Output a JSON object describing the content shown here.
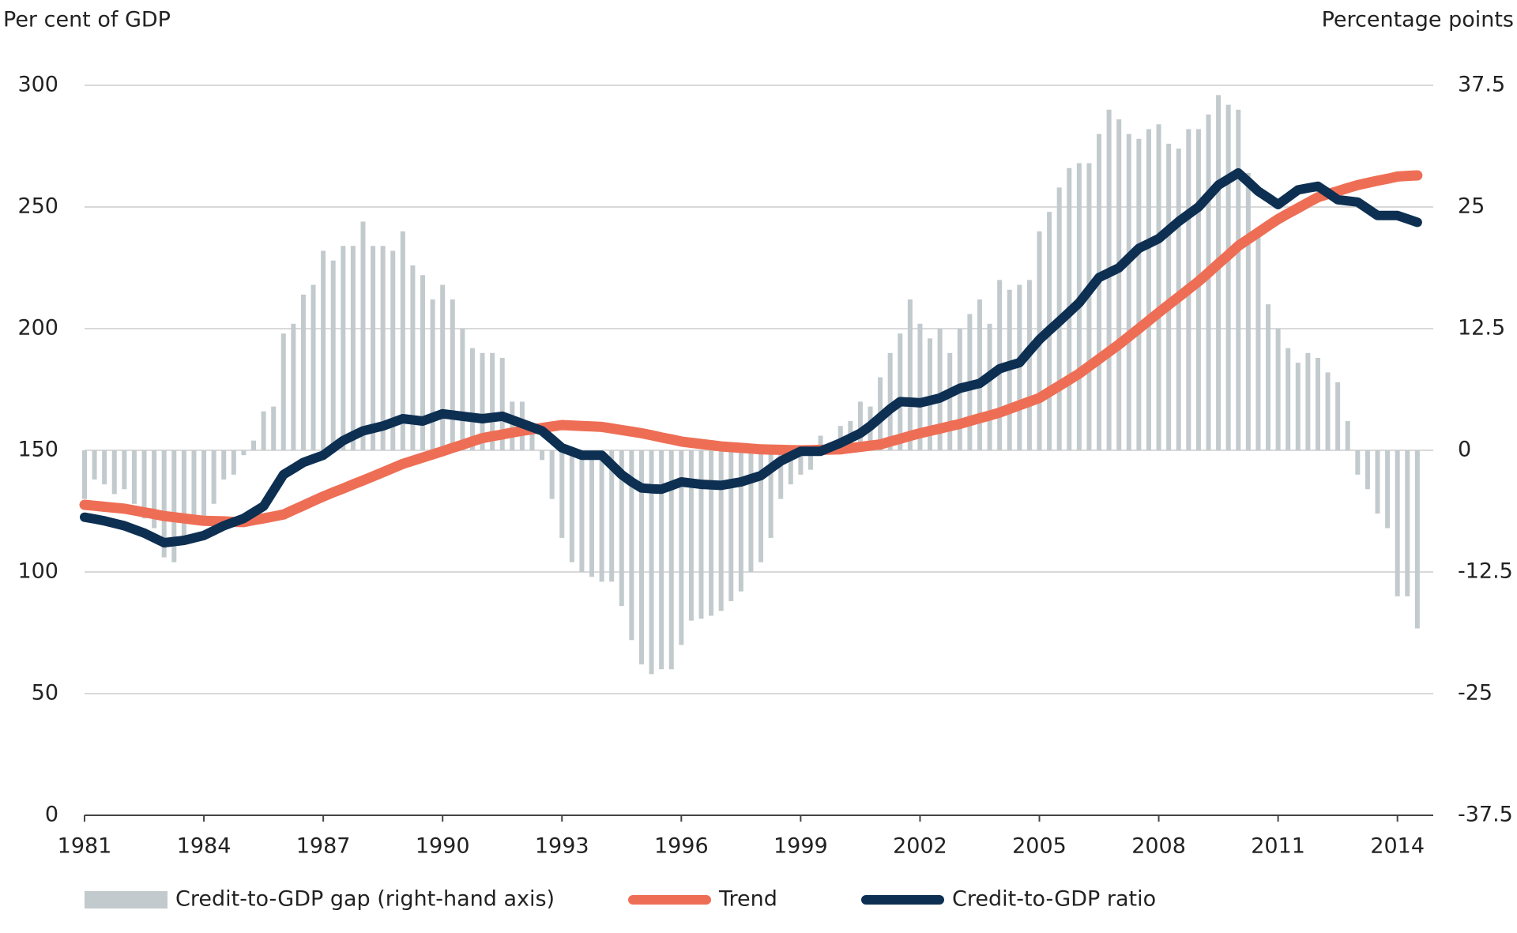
{
  "chart_data": {
    "type": "bar",
    "y_label": "Per cent of GDP",
    "y2_label": "Percentage points",
    "x": [
      1981,
      1981.25,
      1981.5,
      1981.75,
      1982,
      1982.25,
      1982.5,
      1982.75,
      1983,
      1983.25,
      1983.5,
      1983.75,
      1984,
      1984.25,
      1984.5,
      1984.75,
      1985,
      1985.25,
      1985.5,
      1985.75,
      1986,
      1986.25,
      1986.5,
      1986.75,
      1987,
      1987.25,
      1987.5,
      1987.75,
      1988,
      1988.25,
      1988.5,
      1988.75,
      1989,
      1989.25,
      1989.5,
      1989.75,
      1990,
      1990.25,
      1990.5,
      1990.75,
      1991,
      1991.25,
      1991.5,
      1991.75,
      1992,
      1992.25,
      1992.5,
      1992.75,
      1993,
      1993.25,
      1993.5,
      1993.75,
      1994,
      1994.25,
      1994.5,
      1994.75,
      1995,
      1995.25,
      1995.5,
      1995.75,
      1996,
      1996.25,
      1996.5,
      1996.75,
      1997,
      1997.25,
      1997.5,
      1997.75,
      1998,
      1998.25,
      1998.5,
      1998.75,
      1999,
      1999.25,
      1999.5,
      1999.75,
      2000,
      2000.25,
      2000.5,
      2000.75,
      2001,
      2001.25,
      2001.5,
      2001.75,
      2002,
      2002.25,
      2002.5,
      2002.75,
      2003,
      2003.25,
      2003.5,
      2003.75,
      2004,
      2004.25,
      2004.5,
      2004.75,
      2005,
      2005.25,
      2005.5,
      2005.75,
      2006,
      2006.25,
      2006.5,
      2006.75,
      2007,
      2007.25,
      2007.5,
      2007.75,
      2008,
      2008.25,
      2008.5,
      2008.75,
      2009,
      2009.25,
      2009.5,
      2009.75,
      2010,
      2010.25,
      2010.5,
      2010.75,
      2011,
      2011.25,
      2011.5,
      2011.75,
      2012,
      2012.25,
      2012.5,
      2012.75,
      2013,
      2013.25,
      2013.5,
      2013.75,
      2014,
      2014.25,
      2014.5
    ],
    "series": [
      {
        "name": "Credit-to-GDP gap (right-hand axis)",
        "type": "bar",
        "axis": "y2",
        "color": "#c2cacd",
        "values": [
          -5,
          -3,
          -3.5,
          -4.5,
          -4,
          -5.5,
          -7,
          -8,
          -11,
          -11.5,
          -9,
          -7,
          -7,
          -5.5,
          -3,
          -2.5,
          -0.5,
          1,
          4,
          4.5,
          12,
          13,
          16,
          17,
          20.5,
          19.5,
          21,
          21,
          23.5,
          21,
          21,
          20.5,
          22.5,
          19,
          18,
          15.5,
          17,
          15.5,
          12.5,
          10.5,
          10,
          10,
          9.5,
          5,
          5,
          2.5,
          -1,
          -5,
          -9,
          -11.5,
          -12.5,
          -13,
          -13.5,
          -13.5,
          -16,
          -19.5,
          -22,
          -23,
          -22.5,
          -22.5,
          -20,
          -17.5,
          -17.3,
          -17,
          -16.5,
          -15.5,
          -14.5,
          -12.5,
          -11.5,
          -9,
          -5,
          -3.5,
          -2.5,
          -2,
          1.5,
          0,
          2.5,
          3,
          5,
          4.5,
          7.5,
          10,
          12,
          15.5,
          13,
          11.5,
          12.5,
          10,
          12.5,
          14,
          15.5,
          13,
          17.5,
          16.5,
          17,
          17.5,
          22.5,
          24.5,
          27,
          29,
          29.5,
          29.5,
          32.5,
          35,
          34,
          32.5,
          32,
          33,
          33.5,
          31.5,
          31,
          33,
          33,
          34.5,
          36.5,
          35.5,
          35,
          28.5,
          22,
          15,
          12.5,
          10.5,
          9,
          10,
          9.5,
          8,
          7,
          3,
          -2.5,
          -4,
          -6.5,
          -8,
          -15,
          -15,
          -18.3
        ]
      },
      {
        "name": "Trend",
        "type": "line",
        "color": "#ee6e55",
        "values": [
          127.6,
          127.2,
          126.8,
          126.4,
          126,
          125.3,
          124.5,
          123.8,
          123,
          122.5,
          122,
          121.5,
          121,
          120.9,
          120.8,
          120.6,
          120.5,
          121.3,
          122,
          122.8,
          123.6,
          125.5,
          127.3,
          129.2,
          131,
          132.7,
          134.3,
          136,
          137.6,
          139.3,
          141,
          142.7,
          144.4,
          145.7,
          147,
          148.3,
          149.6,
          151,
          152.3,
          153.7,
          155,
          155.8,
          156.5,
          157.3,
          158,
          158.6,
          159.2,
          159.8,
          160.4,
          160.2,
          160,
          159.8,
          159.6,
          159,
          158.3,
          157.7,
          157,
          156.2,
          155.3,
          154.5,
          153.6,
          153.1,
          152.6,
          152.1,
          151.6,
          151.3,
          151,
          150.7,
          150.4,
          150.3,
          150.2,
          150.1,
          150,
          150.1,
          150.2,
          150.3,
          150.4,
          150.9,
          151.4,
          151.9,
          152.4,
          153.6,
          154.7,
          155.9,
          157,
          158,
          158.9,
          159.9,
          160.8,
          162,
          163.2,
          164.3,
          165.5,
          167,
          168.5,
          170,
          171.5,
          174,
          176.5,
          179,
          181.5,
          184.5,
          187.5,
          190.5,
          193.5,
          196.8,
          200,
          203.3,
          206.6,
          209.8,
          213,
          216.2,
          219.4,
          223,
          226.7,
          230.3,
          234,
          236.8,
          239.5,
          242.3,
          245,
          247.3,
          249.5,
          251.8,
          254,
          255.3,
          256.5,
          257.8,
          259,
          259.9,
          260.8,
          261.6,
          262.5,
          262.8,
          263
        ]
      },
      {
        "name": "Credit-to-GDP ratio",
        "type": "line",
        "color": "#0d2f52",
        "values": [
          122.5,
          121.8,
          121,
          120,
          119,
          117.5,
          116,
          114,
          112,
          112.5,
          113,
          114,
          115,
          117,
          119,
          120.5,
          122,
          124.5,
          127,
          133.5,
          140,
          142.5,
          145,
          146.5,
          148,
          151,
          154,
          156,
          158,
          159,
          160,
          161.5,
          163,
          162.5,
          162,
          163.5,
          165,
          164.5,
          164,
          163.5,
          163,
          163.5,
          164,
          162.5,
          161,
          159.5,
          158,
          154.5,
          151,
          149.5,
          148,
          148,
          148,
          144,
          140,
          137,
          134.5,
          134.2,
          134,
          135.5,
          137,
          136.5,
          136,
          135.8,
          135.6,
          136.3,
          137,
          138.3,
          139.6,
          142.6,
          145.6,
          147.6,
          149.6,
          149.6,
          149.6,
          151.3,
          153,
          155,
          157,
          160,
          163.5,
          167,
          170,
          169.8,
          169.5,
          170.5,
          171.5,
          173.5,
          175.5,
          176.5,
          177.5,
          180.5,
          183.5,
          184.8,
          186,
          190.8,
          195.5,
          199.3,
          203,
          206.8,
          210.6,
          215.8,
          221,
          223,
          225,
          229,
          233,
          235,
          237,
          240.5,
          244,
          247,
          250,
          254.5,
          259,
          261.5,
          264,
          260.3,
          256.5,
          253.8,
          251,
          254,
          257,
          257.8,
          258.5,
          255.8,
          253,
          252.5,
          252,
          249.3,
          246.5,
          246.5,
          246.5,
          245.1,
          243.7
        ]
      }
    ],
    "xlim": [
      1981,
      2014.9
    ],
    "xticks": [
      1981,
      1984,
      1987,
      1990,
      1993,
      1996,
      1999,
      2002,
      2005,
      2008,
      2011,
      2014
    ],
    "ylim": [
      0,
      300
    ],
    "yticks": [
      0,
      50,
      100,
      150,
      200,
      250,
      300
    ],
    "y2lim": [
      -37.5,
      37.5
    ],
    "y2ticks": [
      -37.5,
      -25,
      -12.5,
      0,
      12.5,
      25,
      37.5
    ],
    "grid": true
  }
}
